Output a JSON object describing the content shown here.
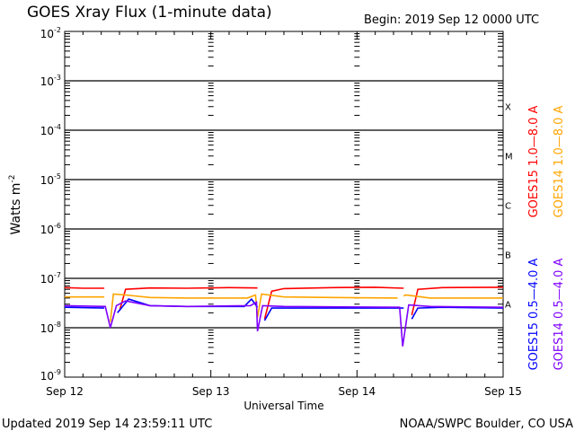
{
  "chart_data": {
    "type": "line",
    "title": "GOES Xray Flux (1-minute data)",
    "begin_label": "Begin:  2019 Sep 12 0000 UTC",
    "xlabel": "Universal Time",
    "ylabel": "Watts m",
    "ylabel_sup": "-2",
    "y_scale": "log",
    "ylim": [
      1e-09,
      0.01
    ],
    "xlim": [
      "2019-09-12 00:00",
      "2019-09-15 00:00"
    ],
    "x_ticks": [
      {
        "t": "2019-09-12 00:00",
        "label": "Sep 12"
      },
      {
        "t": "2019-09-13 00:00",
        "label": "Sep 13"
      },
      {
        "t": "2019-09-14 00:00",
        "label": "Sep 14"
      },
      {
        "t": "2019-09-15 00:00",
        "label": "Sep 15"
      }
    ],
    "y_ticks": [
      {
        "v": 0.01,
        "exp": "-2"
      },
      {
        "v": 0.001,
        "exp": "-3"
      },
      {
        "v": 0.0001,
        "exp": "-4"
      },
      {
        "v": 1e-05,
        "exp": "-5"
      },
      {
        "v": 1e-06,
        "exp": "-6"
      },
      {
        "v": 1e-07,
        "exp": "-7"
      },
      {
        "v": 1e-08,
        "exp": "-8"
      },
      {
        "v": 1e-09,
        "exp": "-9"
      }
    ],
    "flare_classes": [
      {
        "label": "X",
        "v": 0.0001
      },
      {
        "label": "M",
        "v": 1e-05
      },
      {
        "label": "C",
        "v": 1e-06
      },
      {
        "label": "B",
        "v": 1e-07
      },
      {
        "label": "A",
        "v": 1e-08
      }
    ],
    "grid": "horizontal lines at decades 1e-3 to 1e-8",
    "legend_placement": "right",
    "series": [
      {
        "name": "GOES15 1.0—8.0 A",
        "color": "#ff0000",
        "points": [
          [
            "2019-09-12 00:00",
            6.5e-08
          ],
          [
            "2019-09-12 03:00",
            6.3e-08
          ],
          [
            "2019-09-12 06:30",
            6.3e-08
          ],
          null,
          [
            "2019-09-12 09:00",
            2.2e-08
          ],
          [
            "2019-09-12 10:00",
            6e-08
          ],
          [
            "2019-09-12 14:00",
            6.4e-08
          ],
          [
            "2019-09-12 20:00",
            6.3e-08
          ],
          [
            "2019-09-13 03:00",
            6.5e-08
          ],
          [
            "2019-09-13 07:40",
            6.4e-08
          ],
          null,
          [
            "2019-09-13 08:50",
            1.5e-08
          ],
          [
            "2019-09-13 10:00",
            5.5e-08
          ],
          [
            "2019-09-13 12:00",
            6.2e-08
          ],
          [
            "2019-09-13 20:00",
            6.5e-08
          ],
          [
            "2019-09-14 03:00",
            6.6e-08
          ],
          [
            "2019-09-14 07:40",
            6.3e-08
          ],
          null,
          [
            "2019-09-14 09:00",
            1.8e-08
          ],
          [
            "2019-09-14 10:00",
            6e-08
          ],
          [
            "2019-09-14 14:00",
            6.5e-08
          ],
          [
            "2019-09-15 00:00",
            6.6e-08
          ]
        ]
      },
      {
        "name": "GOES14 1.0—8.0 A",
        "color": "#ffa500",
        "points": [
          [
            "2019-09-12 00:00",
            4.2e-08
          ],
          [
            "2019-09-12 06:30",
            4.2e-08
          ],
          null,
          [
            "2019-09-12 07:30",
            1.3e-08
          ],
          [
            "2019-09-12 08:00",
            4.8e-08
          ],
          [
            "2019-09-12 10:00",
            4.6e-08
          ],
          [
            "2019-09-12 14:00",
            4.1e-08
          ],
          [
            "2019-09-12 20:00",
            4e-08
          ],
          [
            "2019-09-13 06:00",
            4e-08
          ],
          [
            "2019-09-13 07:20",
            4.6e-08
          ],
          [
            "2019-09-13 07:40",
            1.6e-08
          ],
          [
            "2019-09-13 08:20",
            4.8e-08
          ],
          [
            "2019-09-13 12:00",
            4.2e-08
          ],
          [
            "2019-09-13 20:00",
            4.1e-08
          ],
          [
            "2019-09-14 06:40",
            4e-08
          ],
          null,
          [
            "2019-09-14 07:40",
            4.4e-08
          ],
          [
            "2019-09-14 08:00",
            4.6e-08
          ],
          [
            "2019-09-14 12:00",
            4e-08
          ],
          [
            "2019-09-15 00:00",
            4e-08
          ]
        ]
      },
      {
        "name": "GOES15 0.5—4.0 A",
        "color": "#0000ff",
        "points": [
          [
            "2019-09-12 00:00",
            2.6e-08
          ],
          [
            "2019-09-12 06:30",
            2.5e-08
          ],
          null,
          [
            "2019-09-12 08:40",
            2e-08
          ],
          [
            "2019-09-12 10:30",
            3.8e-08
          ],
          [
            "2019-09-12 14:00",
            2.8e-08
          ],
          [
            "2019-09-12 20:00",
            2.7e-08
          ],
          [
            "2019-09-13 05:30",
            2.7e-08
          ],
          [
            "2019-09-13 06:40",
            3.8e-08
          ],
          [
            "2019-09-13 07:40",
            2.6e-08
          ],
          null,
          [
            "2019-09-13 08:50",
            1.4e-08
          ],
          [
            "2019-09-13 10:00",
            2.5e-08
          ],
          [
            "2019-09-13 20:00",
            2.5e-08
          ],
          [
            "2019-09-14 07:40",
            2.5e-08
          ],
          null,
          [
            "2019-09-14 09:00",
            1.5e-08
          ],
          [
            "2019-09-14 10:00",
            2.5e-08
          ],
          [
            "2019-09-14 14:00",
            2.6e-08
          ],
          [
            "2019-09-15 00:00",
            2.5e-08
          ]
        ]
      },
      {
        "name": "GOES14 0.5—4.0 A",
        "color": "#7f00ff",
        "points": [
          [
            "2019-09-12 00:00",
            2.8e-08
          ],
          [
            "2019-09-12 06:40",
            2.7e-08
          ],
          [
            "2019-09-12 07:30",
            1e-08
          ],
          [
            "2019-09-12 08:30",
            2.8e-08
          ],
          [
            "2019-09-12 10:00",
            3.5e-08
          ],
          [
            "2019-09-12 14:00",
            2.8e-08
          ],
          [
            "2019-09-12 20:00",
            2.7e-08
          ],
          [
            "2019-09-13 06:30",
            2.8e-08
          ],
          [
            "2019-09-13 07:30",
            3.3e-08
          ],
          [
            "2019-09-13 07:40",
            8.5e-09
          ],
          [
            "2019-09-13 08:30",
            2.8e-08
          ],
          [
            "2019-09-13 12:00",
            2.7e-08
          ],
          [
            "2019-09-14 07:00",
            2.6e-08
          ],
          [
            "2019-09-14 07:30",
            4.2e-09
          ],
          [
            "2019-09-14 08:30",
            2.9e-08
          ],
          [
            "2019-09-14 12:00",
            2.7e-08
          ],
          [
            "2019-09-15 00:00",
            2.6e-08
          ]
        ]
      }
    ]
  },
  "footer": {
    "updated": "Updated 2019 Sep 14 23:59:11 UTC",
    "credit": "NOAA/SWPC Boulder, CO USA"
  }
}
